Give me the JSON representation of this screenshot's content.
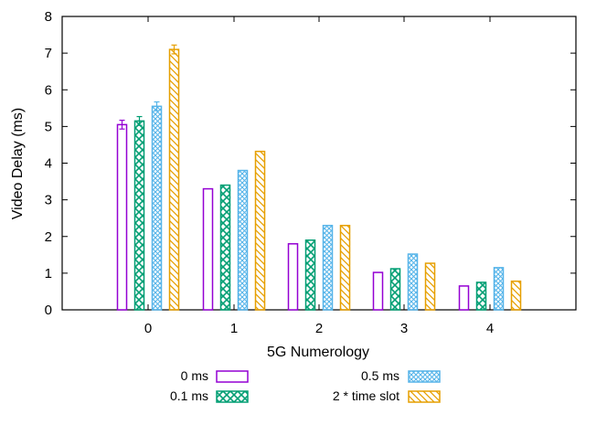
{
  "chart_data": {
    "type": "bar",
    "xlabel": "5G Numerology",
    "ylabel": "Video Delay (ms)",
    "categories": [
      "0",
      "1",
      "2",
      "3",
      "4"
    ],
    "ylim": [
      0,
      8
    ],
    "yticks": [
      "0",
      "1",
      "2",
      "3",
      "4",
      "5",
      "6",
      "7",
      "8"
    ],
    "grid": false,
    "legend_position": "bottom",
    "series": [
      {
        "name": "0 ms",
        "color": "#9400d3",
        "pattern": "none",
        "values": [
          5.05,
          3.3,
          1.8,
          1.02,
          0.65
        ],
        "errors": [
          0.12,
          0,
          0,
          0,
          0
        ]
      },
      {
        "name": "0.1 ms",
        "color": "#009e73",
        "pattern": "crosshatch",
        "values": [
          5.15,
          3.4,
          1.9,
          1.12,
          0.75
        ],
        "errors": [
          0.12,
          0,
          0,
          0,
          0
        ]
      },
      {
        "name": "0.5 ms",
        "color": "#56b4e9",
        "pattern": "fine-crosshatch",
        "values": [
          5.55,
          3.8,
          2.3,
          1.52,
          1.15
        ],
        "errors": [
          0.12,
          0,
          0,
          0,
          0
        ]
      },
      {
        "name": "2 * time slot",
        "color": "#e69f00",
        "pattern": "diagonal",
        "values": [
          7.1,
          4.32,
          2.3,
          1.27,
          0.78
        ],
        "errors": [
          0.12,
          0,
          0,
          0,
          0
        ]
      }
    ]
  }
}
